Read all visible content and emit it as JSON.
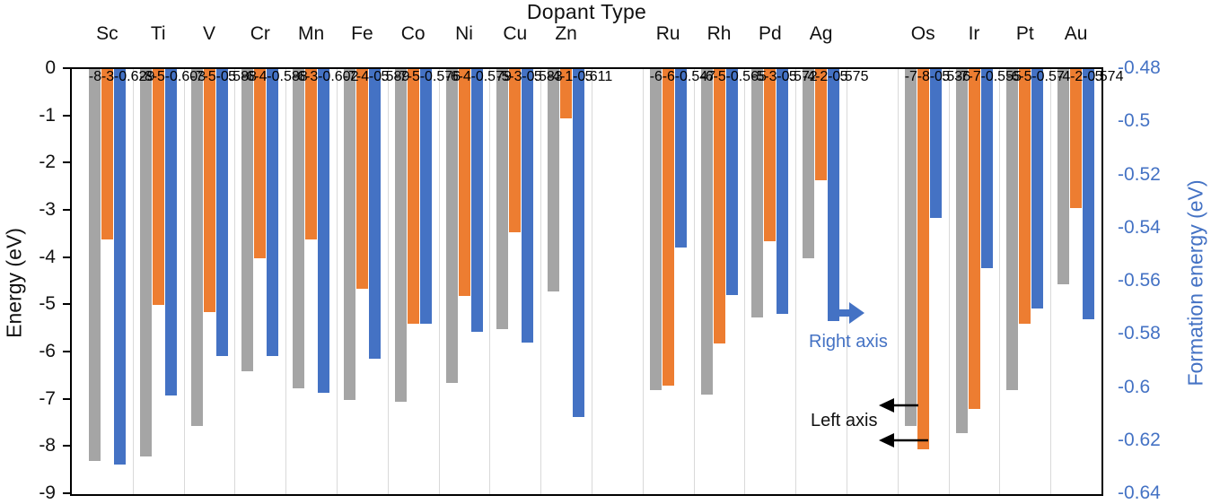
{
  "title": "Dopant Type",
  "left_axis": {
    "label": "Energy (eV)",
    "ticks": [
      "0",
      "-1",
      "-2",
      "-3",
      "-4",
      "-5",
      "-6",
      "-7",
      "-8",
      "-9"
    ]
  },
  "right_axis": {
    "label": "Formation energy (eV)",
    "ticks": [
      "-0.48",
      "-0.5",
      "-0.52",
      "-0.54",
      "-0.56",
      "-0.58",
      "-0.6",
      "-0.62",
      "-0.64"
    ],
    "color": "#4472C4"
  },
  "annotations": {
    "right_axis_callout": "Right axis",
    "left_axis_callout": "Left axis"
  },
  "colors": {
    "gray_series": "#A5A5A5",
    "orange_series": "#ED7D31",
    "blue_series": "#4472C4",
    "gridline": "#D9D9D9",
    "axis": "#000000"
  },
  "chart_data": {
    "type": "bar",
    "title": "Dopant Type",
    "orientation": "vertical, bars hang downward from 0 line",
    "categories": [
      "Sc",
      "Ti",
      "V",
      "Cr",
      "Mn",
      "Fe",
      "Co",
      "Ni",
      "Cu",
      "Zn",
      "Ru",
      "Rh",
      "Pd",
      "Ag",
      "Os",
      "Ir",
      "Pt",
      "Au"
    ],
    "category_columns": [
      0,
      1,
      2,
      3,
      4,
      5,
      6,
      7,
      8,
      9,
      11,
      12,
      13,
      14,
      16,
      17,
      18,
      19
    ],
    "n_columns": 20,
    "left_axis": {
      "label": "Energy (eV)",
      "range": [
        -9,
        0
      ],
      "tick_step": 1
    },
    "right_axis": {
      "label": "Formation energy (eV)",
      "range": [
        -0.64,
        -0.48
      ],
      "tick_step": 0.02
    },
    "grid": "vertical category separators only",
    "legend": "none",
    "series": [
      {
        "id": "gray",
        "axis": "left",
        "color": "#A5A5A5",
        "values": [
          -8.3,
          -8.2,
          -7.55,
          -6.4,
          -6.75,
          -7.0,
          -7.05,
          -6.65,
          -5.5,
          -4.7,
          -6.8,
          -6.9,
          -5.25,
          -4.0,
          -7.55,
          -7.7,
          -6.8,
          -4.55
        ]
      },
      {
        "id": "orange",
        "axis": "left",
        "color": "#ED7D31",
        "values": [
          -3.6,
          -5.0,
          -5.15,
          -4.0,
          -3.6,
          -4.65,
          -5.4,
          -4.8,
          -3.45,
          -1.05,
          -6.7,
          -5.8,
          -3.65,
          -2.35,
          -8.05,
          -7.2,
          -5.4,
          -2.95
        ]
      },
      {
        "id": "blue",
        "axis": "right",
        "color": "#4472C4",
        "values": [
          -0.629,
          -0.603,
          -0.588,
          -0.588,
          -0.602,
          -0.589,
          -0.576,
          -0.579,
          -0.583,
          -0.611,
          -0.547,
          -0.565,
          -0.572,
          -0.575,
          -0.536,
          -0.555,
          -0.57,
          -0.574
        ]
      }
    ],
    "annotations": [
      {
        "text": "Right axis",
        "color": "#4472C4",
        "arrow_direction": "right",
        "points_from": "bottom of Ag blue bar"
      },
      {
        "text": "Left axis",
        "color": "#000000",
        "arrow_direction": "left",
        "points_from": "bottoms of Os gray and orange bars"
      }
    ]
  }
}
